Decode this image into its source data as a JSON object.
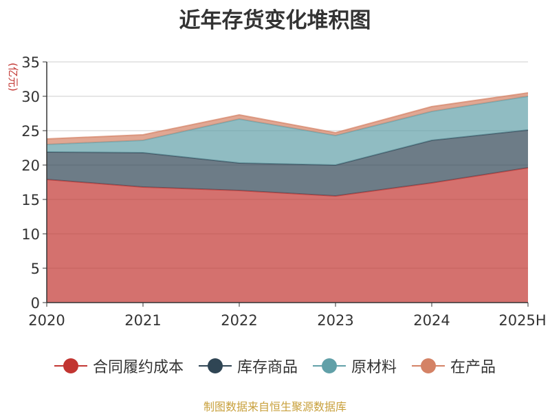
{
  "chart_data": {
    "type": "area",
    "stacked": true,
    "title": "近年存货变化堆积图",
    "ylabel": "(亿元)",
    "categories": [
      "2020",
      "2021",
      "2022",
      "2023",
      "2024",
      "2025H"
    ],
    "ylim": [
      0,
      35
    ],
    "yticks": [
      "0",
      "5",
      "10",
      "15",
      "20",
      "25",
      "30",
      "35"
    ],
    "grid": true,
    "legend_position": "bottom",
    "series": [
      {
        "name": "合同履约成本",
        "color": "#c23531",
        "values": [
          17.9,
          16.8,
          16.3,
          15.5,
          17.4,
          19.6
        ]
      },
      {
        "name": "库存商品",
        "color": "#2f4554",
        "values": [
          4.0,
          5.0,
          4.0,
          4.5,
          6.2,
          5.5
        ]
      },
      {
        "name": "原材料",
        "color": "#61a0a8",
        "values": [
          1.1,
          1.8,
          6.4,
          4.3,
          4.2,
          4.9
        ]
      },
      {
        "name": "在产品",
        "color": "#d48265",
        "values": [
          0.8,
          0.8,
          0.6,
          0.4,
          0.7,
          0.5
        ]
      }
    ]
  },
  "source_note": "制图数据来自恒生聚源数据库",
  "colors": {
    "title": "#333333",
    "axis": "#333333",
    "grid": "#cccccc",
    "ylabel": "#c23531",
    "source_note": "#c8a03c"
  }
}
